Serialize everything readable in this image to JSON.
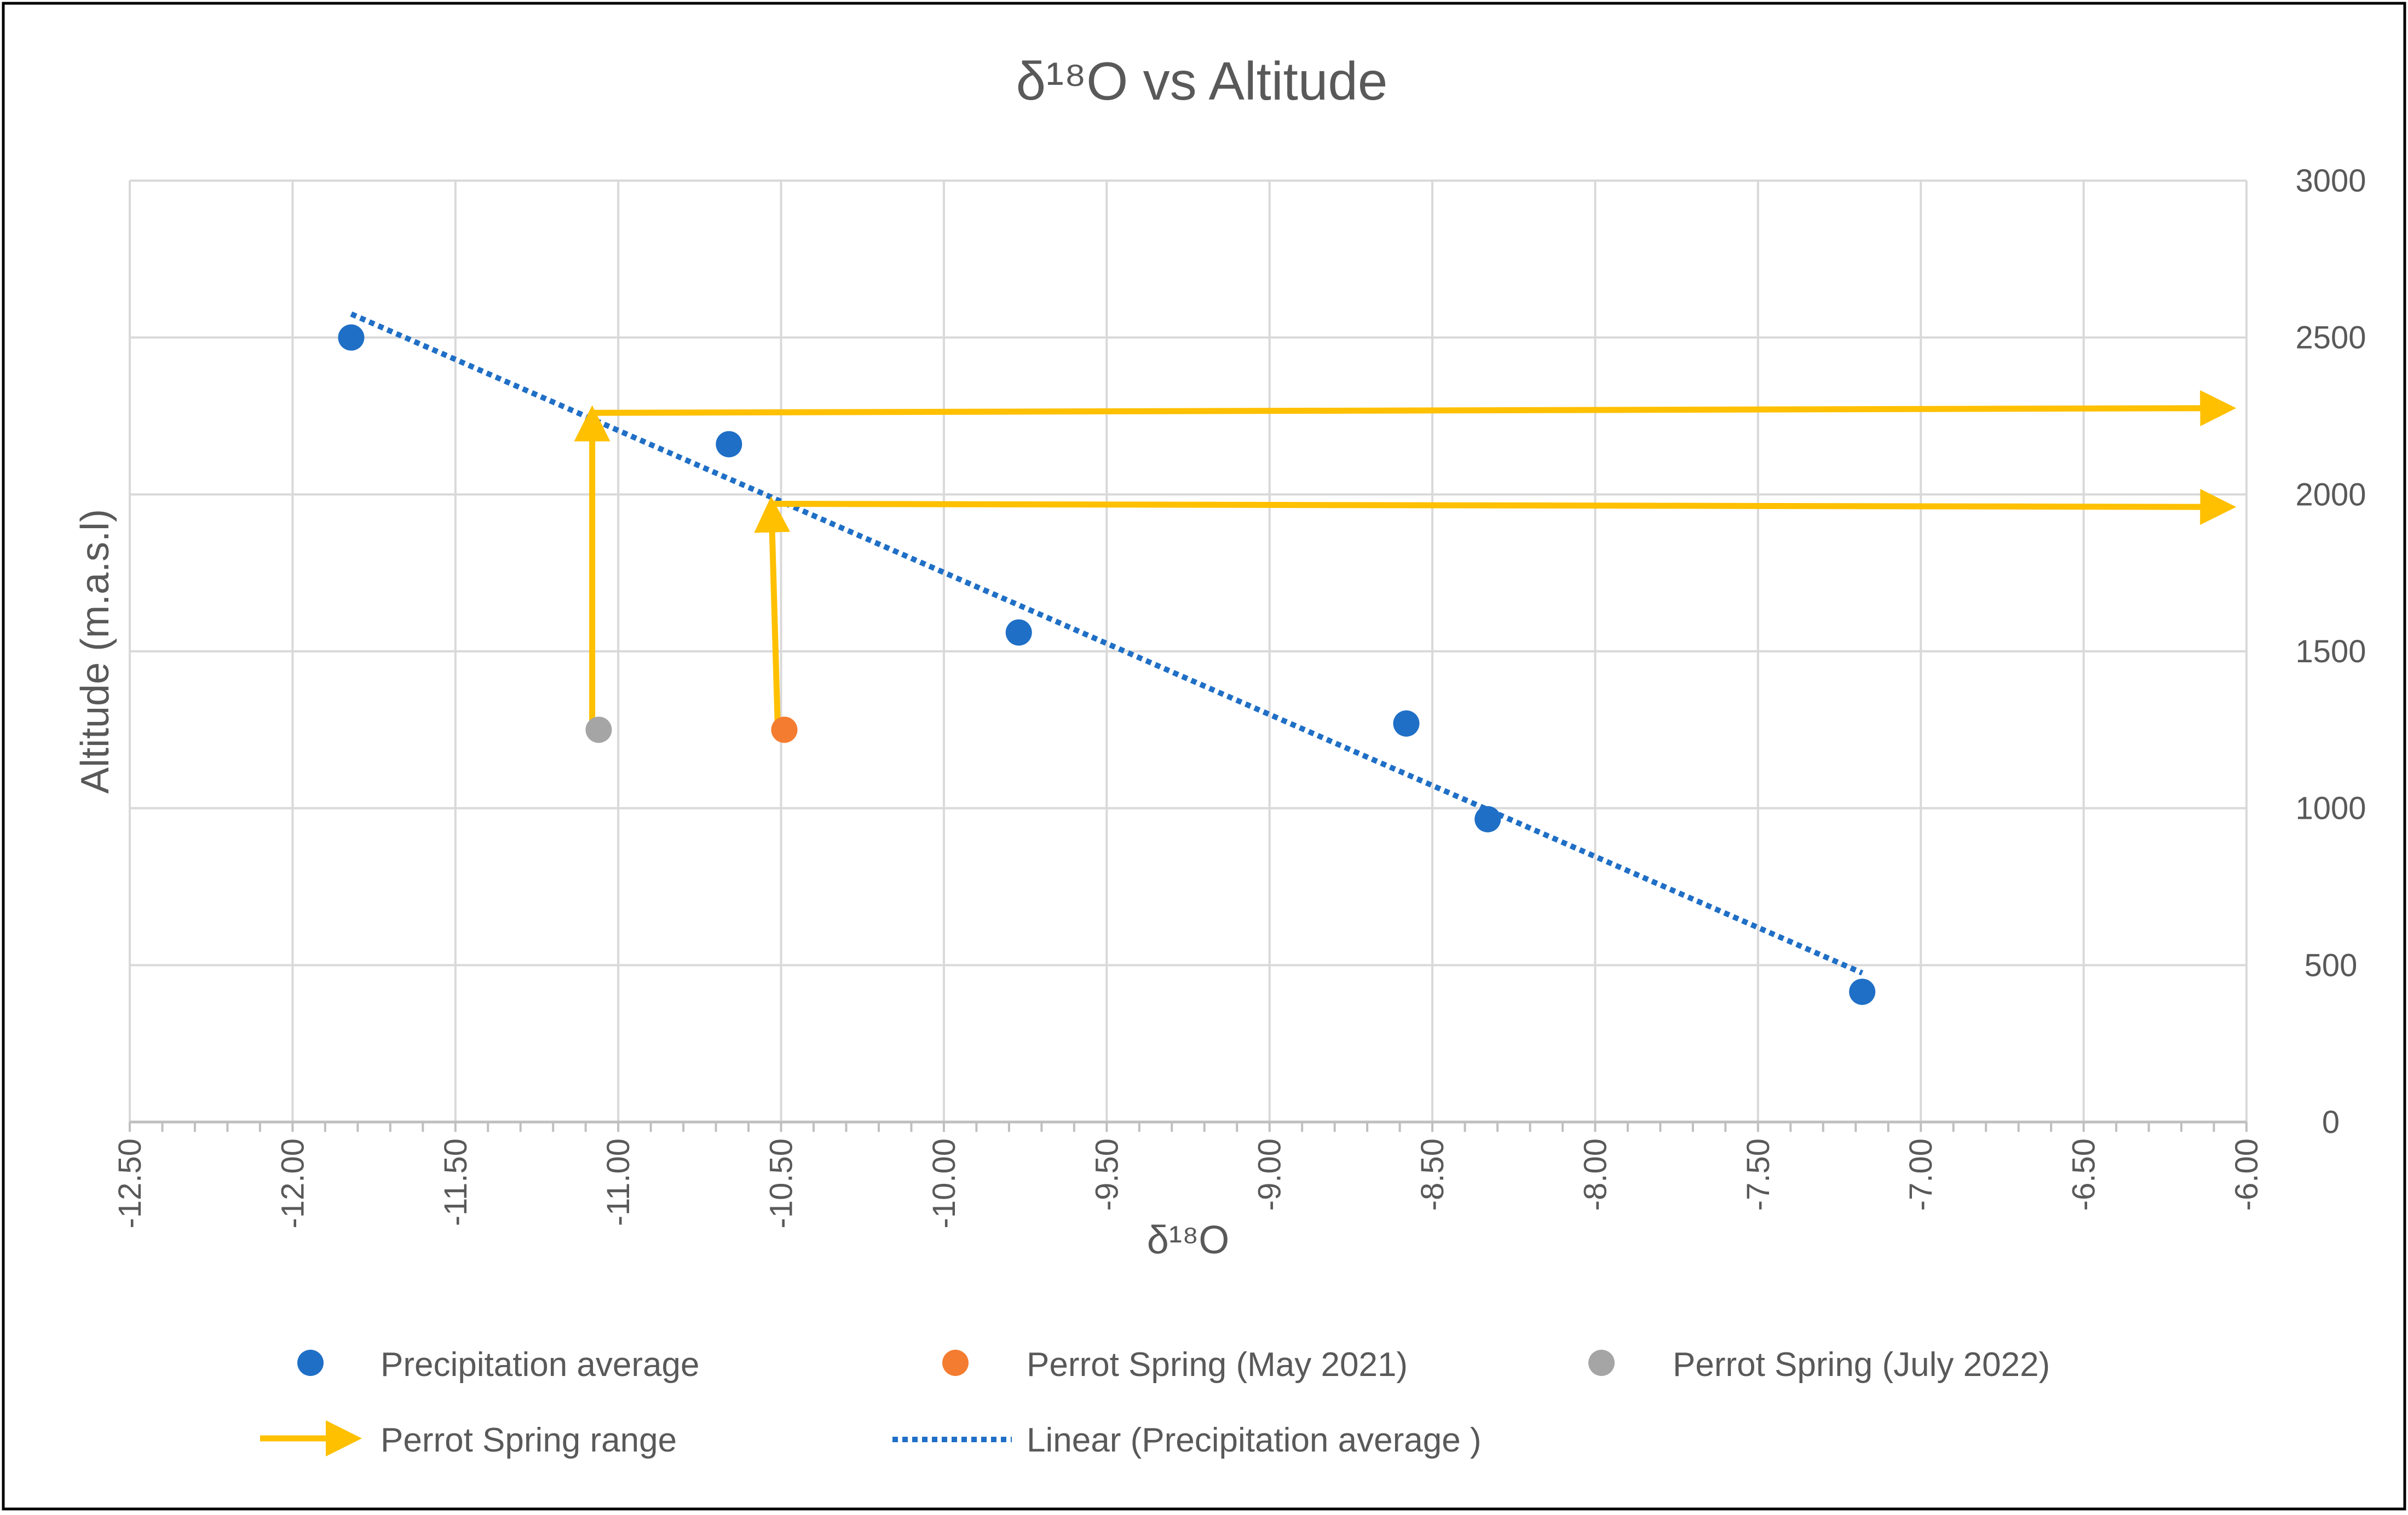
{
  "chart_data": {
    "type": "scatter",
    "title": "δ¹⁸O vs Altitude",
    "xlabel": "δ¹⁸O",
    "ylabel": "Altitude (m.a.s.l)",
    "xlim": [
      -12.5,
      -6.0
    ],
    "ylim": [
      0,
      3000
    ],
    "x_major_step": 0.5,
    "x_minor_step": 0.1,
    "y_step": 500,
    "x_tick_labels": [
      "-12.50",
      "-12.00",
      "-11.50",
      "-11.00",
      "-10.50",
      "-10.00",
      "-9.50",
      "-9.00",
      "-8.50",
      "-8.00",
      "-7.50",
      "-7.00",
      "-6.50",
      "-6.00"
    ],
    "y_tick_labels": [
      "0",
      "500",
      "1000",
      "1500",
      "2000",
      "2500",
      "3000"
    ],
    "grid": true,
    "y_axis_side": "right",
    "legend_position": "bottom",
    "series": [
      {
        "name": "Precipitation average",
        "kind": "marker",
        "color": "#1f6fc6",
        "points": [
          {
            "x": -11.82,
            "y": 2500
          },
          {
            "x": -10.66,
            "y": 2160
          },
          {
            "x": -9.77,
            "y": 1560
          },
          {
            "x": -8.58,
            "y": 1270
          },
          {
            "x": -8.33,
            "y": 965
          },
          {
            "x": -7.18,
            "y": 415
          }
        ]
      },
      {
        "name": "Perrot Spring (May 2021)",
        "kind": "marker",
        "color": "#f47c30",
        "points": [
          {
            "x": -10.49,
            "y": 1250
          }
        ]
      },
      {
        "name": "Perrot Spring (July 2022)",
        "kind": "marker",
        "color": "#a5a5a5",
        "points": [
          {
            "x": -11.06,
            "y": 1250
          }
        ]
      },
      {
        "name": "Perrot Spring range",
        "kind": "arrow",
        "color": "#ffc000",
        "arrows": [
          {
            "from": {
              "x": -11.08,
              "y": 1250
            },
            "to": {
              "x": -11.08,
              "y": 2265
            }
          },
          {
            "from": {
              "x": -11.08,
              "y": 2260
            },
            "to": {
              "x": -6.05,
              "y": 2275
            }
          },
          {
            "from": {
              "x": -10.51,
              "y": 1250
            },
            "to": {
              "x": -10.53,
              "y": 1975
            }
          },
          {
            "from": {
              "x": -10.53,
              "y": 1970
            },
            "to": {
              "x": -6.05,
              "y": 1960
            }
          }
        ]
      },
      {
        "name": "Linear (Precipitation average )",
        "kind": "trendline",
        "color": "#1f6fc6",
        "from": {
          "x": -11.82,
          "y": 2575
        },
        "to": {
          "x": -7.18,
          "y": 475
        }
      }
    ]
  }
}
